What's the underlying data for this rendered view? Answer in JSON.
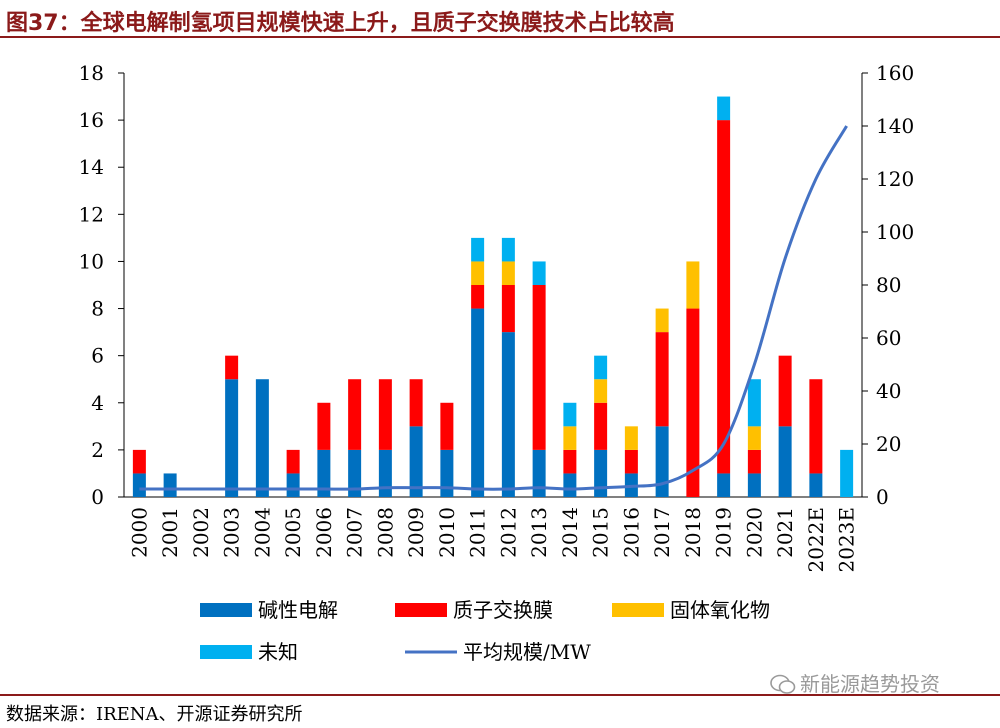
{
  "header": {
    "title": "图37：全球电解制氢项目规模快速上升，且质子交换膜技术占比较高"
  },
  "footer": {
    "source": "数据来源：IRENA、开源证券研究所",
    "watermark": "新能源趋势投资"
  },
  "colors": {
    "alkaline": "#0070c0",
    "pem": "#ff0000",
    "soec": "#ffc000",
    "unknown": "#00b0f0",
    "avg": "#4472c4",
    "title": "#8b1a1a"
  },
  "chart_data": {
    "type": "bar",
    "stacked": true,
    "categories": [
      "2000",
      "2001",
      "2002",
      "2003",
      "2004",
      "2005",
      "2006",
      "2007",
      "2008",
      "2009",
      "2010",
      "2011",
      "2012",
      "2013",
      "2014",
      "2015",
      "2016",
      "2017",
      "2018",
      "2019",
      "2020",
      "2021",
      "2022E",
      "2023E"
    ],
    "y_left": {
      "min": 0,
      "max": 18,
      "ticks": [
        0,
        2,
        4,
        6,
        8,
        10,
        12,
        14,
        16,
        18
      ]
    },
    "y_right": {
      "min": 0,
      "max": 160,
      "ticks": [
        0,
        20,
        40,
        60,
        80,
        100,
        120,
        140,
        160
      ]
    },
    "series": [
      {
        "name": "碱性电解",
        "key": "alkaline",
        "axis": "left",
        "values": [
          1,
          1,
          0,
          5,
          5,
          1,
          2,
          2,
          2,
          3,
          2,
          8,
          7,
          2,
          1,
          2,
          1,
          3,
          0,
          1,
          1,
          3,
          1,
          0
        ]
      },
      {
        "name": "质子交换膜",
        "key": "pem",
        "axis": "left",
        "values": [
          1,
          0,
          0,
          1,
          0,
          1,
          2,
          3,
          3,
          2,
          2,
          1,
          2,
          7,
          1,
          2,
          1,
          4,
          8,
          15,
          1,
          3,
          4,
          0
        ]
      },
      {
        "name": "固体氧化物",
        "key": "soec",
        "axis": "left",
        "values": [
          0,
          0,
          0,
          0,
          0,
          0,
          0,
          0,
          0,
          0,
          0,
          1,
          1,
          0,
          1,
          1,
          1,
          1,
          2,
          0,
          1,
          0,
          0,
          0
        ]
      },
      {
        "name": "未知",
        "key": "unknown",
        "axis": "left",
        "values": [
          0,
          0,
          0,
          0,
          0,
          0,
          0,
          0,
          0,
          0,
          0,
          1,
          1,
          1,
          1,
          1,
          0,
          0,
          0,
          1,
          2,
          0,
          0,
          2
        ]
      },
      {
        "name": "平均规模/MW",
        "key": "avg",
        "axis": "right",
        "type": "line",
        "values": [
          3,
          3,
          3,
          3,
          3,
          3,
          3,
          3,
          3.5,
          3.5,
          3.5,
          3,
          3,
          3.5,
          3,
          3.5,
          4,
          5,
          10,
          20,
          50,
          90,
          120,
          140
        ]
      }
    ],
    "legend_position": "bottom",
    "grid": false
  }
}
